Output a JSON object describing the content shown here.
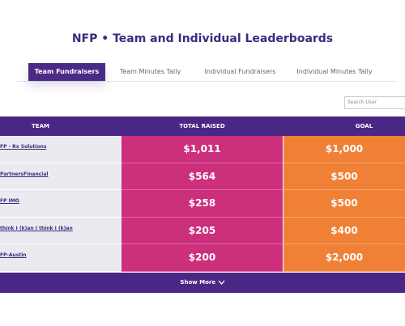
{
  "header": {
    "title": "NFP • Team and Individual Leaderboards"
  },
  "tabs": [
    "Team Fundraisers",
    "Team Minutes Tally",
    "Individual Fundraisers",
    "Individual Minutes Tally"
  ],
  "search": {
    "placeholder": "Search User"
  },
  "table": {
    "columns": [
      "TEAM",
      "TOTAL RAISED",
      "GOAL"
    ],
    "rows": [
      [
        "FP - Rx Solutions",
        "$1,011",
        "$1,000"
      ],
      [
        "PartnersFinancial",
        "$564",
        "$500"
      ],
      [
        "FP IMO",
        "$258",
        "$500"
      ],
      [
        "think I (k)an I think I (k)an",
        "$205",
        "$400"
      ],
      [
        "FP-Austin",
        "$200",
        "$2,000"
      ]
    ]
  },
  "show_more": "Show More"
}
